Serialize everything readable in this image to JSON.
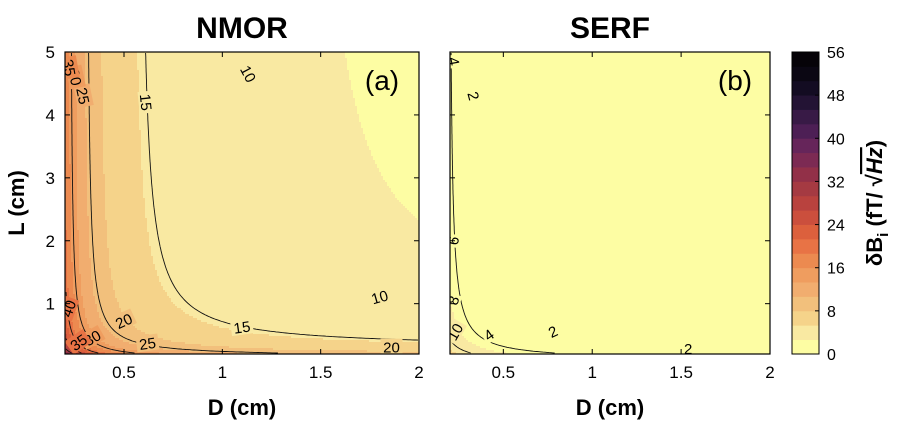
{
  "chart_data": [
    {
      "type": "contour",
      "title": "NMOR",
      "panel_label": "(a)",
      "xlabel": "D (cm)",
      "ylabel": "L (cm)",
      "xlim": [
        0.2,
        2
      ],
      "ylim": [
        0.2,
        5
      ],
      "xticks": [
        0.5,
        1,
        1.5,
        2
      ],
      "xtick_labels": [
        "0.5",
        "1",
        "1.5",
        "2"
      ],
      "yticks": [
        1,
        2,
        3,
        4,
        5
      ],
      "ytick_labels": [
        "1",
        "2",
        "3",
        "4",
        "5"
      ],
      "contour_levels": [
        5,
        10,
        15,
        20,
        25,
        30,
        35,
        40,
        45,
        50,
        55
      ],
      "contour_labels": [
        {
          "text": "10",
          "x": 1.13,
          "y": 4.65,
          "angle": 62
        },
        {
          "text": "15",
          "x": 0.61,
          "y": 4.2,
          "angle": 84
        },
        {
          "text": "25",
          "x": 0.29,
          "y": 4.3,
          "angle": 78
        },
        {
          "text": "30",
          "x": 0.25,
          "y": 4.6,
          "angle": 78
        },
        {
          "text": "35",
          "x": 0.22,
          "y": 4.75,
          "angle": 80
        },
        {
          "text": "10",
          "x": 1.8,
          "y": 1.1,
          "angle": -16
        },
        {
          "text": "15",
          "x": 1.1,
          "y": 0.62,
          "angle": -8
        },
        {
          "text": "20",
          "x": 0.5,
          "y": 0.72,
          "angle": -25
        },
        {
          "text": "25",
          "x": 0.62,
          "y": 0.36,
          "angle": -8
        },
        {
          "text": "30",
          "x": 0.34,
          "y": 0.45,
          "angle": -30
        },
        {
          "text": "35",
          "x": 0.27,
          "y": 0.38,
          "angle": -35
        },
        {
          "text": "40",
          "x": 0.22,
          "y": 0.92,
          "angle": -70
        },
        {
          "text": "20",
          "x": 1.86,
          "y": 0.3,
          "angle": 0
        }
      ]
    },
    {
      "type": "contour",
      "title": "SERF",
      "panel_label": "(b)",
      "xlabel": "D (cm)",
      "ylabel": "",
      "xlim": [
        0.2,
        2
      ],
      "ylim": [
        0.2,
        5
      ],
      "xticks": [
        0.5,
        1,
        1.5,
        2
      ],
      "xtick_labels": [
        "0.5",
        "1",
        "1.5",
        "2"
      ],
      "contour_levels": [
        2,
        4,
        6,
        8,
        10,
        12
      ],
      "contour_labels": [
        {
          "text": "2",
          "x": 0.33,
          "y": 4.3,
          "angle": 75
        },
        {
          "text": "4",
          "x": 0.22,
          "y": 4.85,
          "angle": 80
        },
        {
          "text": "6",
          "x": 0.22,
          "y": 2.0,
          "angle": -80
        },
        {
          "text": "8",
          "x": 0.22,
          "y": 1.05,
          "angle": -70
        },
        {
          "text": "10",
          "x": 0.23,
          "y": 0.55,
          "angle": -60
        },
        {
          "text": "4",
          "x": 0.42,
          "y": 0.5,
          "angle": -35
        },
        {
          "text": "2",
          "x": 0.78,
          "y": 0.55,
          "angle": -25
        },
        {
          "text": "2",
          "x": 1.54,
          "y": 0.28,
          "angle": 0
        }
      ]
    }
  ],
  "colorbar": {
    "label": "δB_i (fT/ √Hz)",
    "label_main": "δB",
    "label_sub": "i",
    "label_open": " (fT/ ",
    "label_radicand": "Hz",
    "label_close": ")",
    "min": 0,
    "max": 56,
    "ticks": [
      0,
      8,
      16,
      24,
      32,
      40,
      48,
      56
    ],
    "tick_labels": [
      "0",
      "8",
      "16",
      "24",
      "32",
      "40",
      "48",
      "56"
    ],
    "band_colors": [
      "#fdfda3",
      "#f9e9a2",
      "#f5d38a",
      "#f2c07c",
      "#f1ad6f",
      "#ef9d5f",
      "#ec8a50",
      "#e87345",
      "#dc603d",
      "#cb4f3d",
      "#b9423e",
      "#a53a42",
      "#923048",
      "#7c2a53",
      "#66255a",
      "#4d1f55",
      "#381a46",
      "#231334",
      "#130c22",
      "#0b0713",
      "#060308"
    ]
  }
}
